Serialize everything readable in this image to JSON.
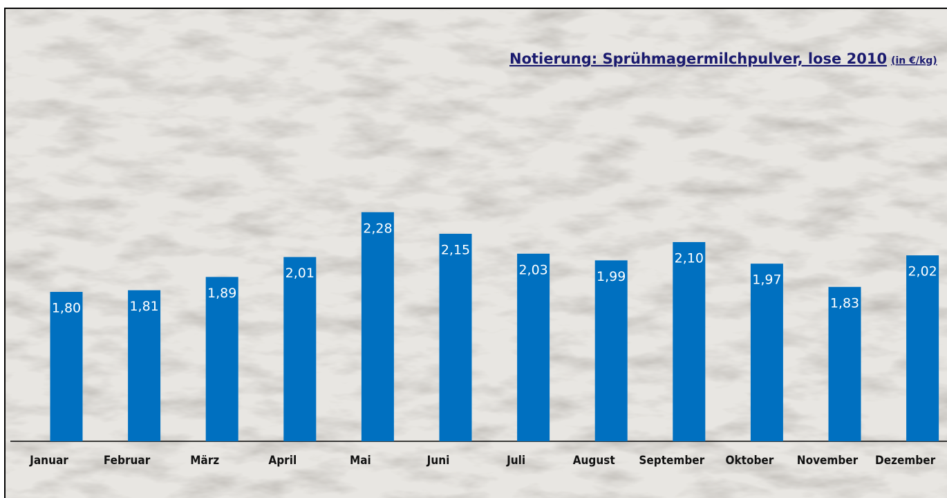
{
  "chart_data": {
    "type": "bar",
    "title": "Notierung: Sprühmagermilchpulver, lose 2010",
    "subtitle": "(in €/kg)",
    "categories": [
      "Januar",
      "Februar",
      "März",
      "April",
      "Mai",
      "Juni",
      "Juli",
      "August",
      "September",
      "Oktober",
      "November",
      "Dezember"
    ],
    "values": [
      1.8,
      1.81,
      1.89,
      2.01,
      2.28,
      2.15,
      2.03,
      1.99,
      2.1,
      1.97,
      1.83,
      2.02
    ],
    "value_labels": [
      "1,80",
      "1,81",
      "1,89",
      "2,01",
      "2,28",
      "2,15",
      "2,03",
      "1,99",
      "2,10",
      "1,97",
      "1,83",
      "2,02"
    ],
    "color": "#0070c0",
    "ylim": [
      0.9,
      2.4
    ]
  }
}
